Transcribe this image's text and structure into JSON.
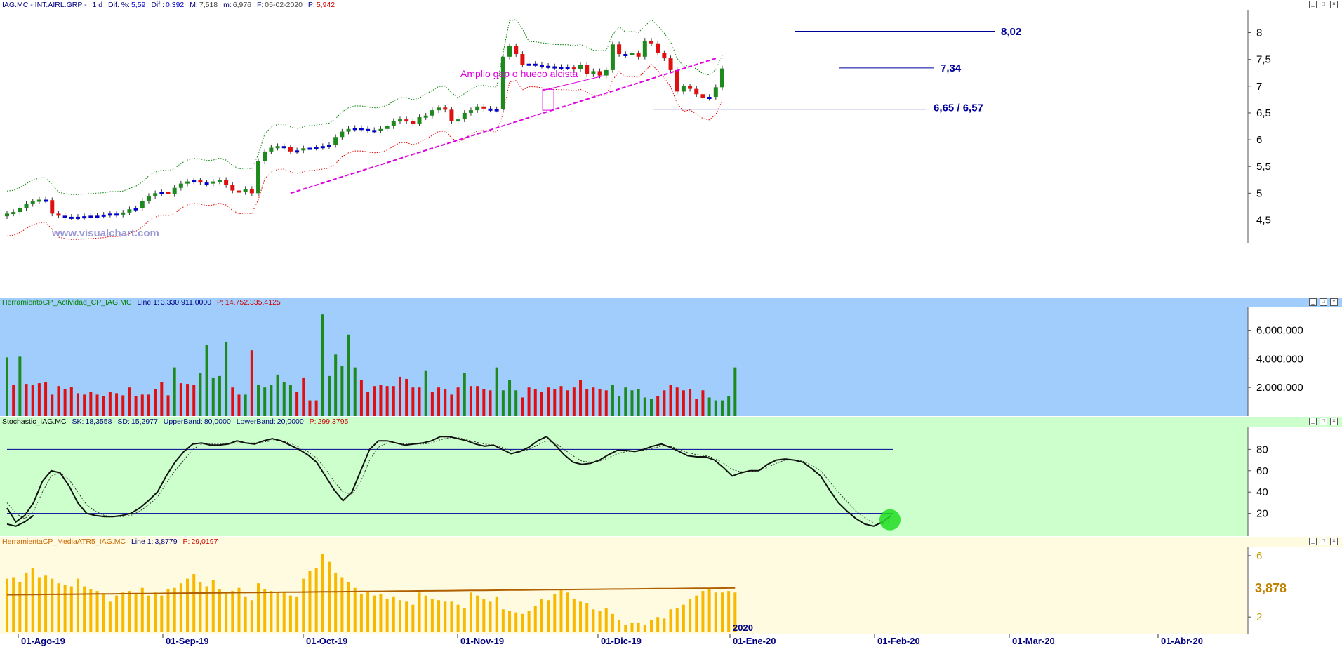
{
  "price_header": {
    "ticker": "IAG.MC - INT.AIRL.GRP -",
    "period": "1 d",
    "dif_pct_label": "Dif. %:",
    "dif_pct": "5,59",
    "dif_label": "Dif.:",
    "dif": "0,392",
    "m_label": "M:",
    "m": "7,518",
    "m2_label": "m:",
    "m2": "6,976",
    "f_label": "F:",
    "f": "05-02-2020",
    "p_label": "P:",
    "p": "5,942"
  },
  "volume_header": {
    "name": "HerramientoCP_Actividad_CP_IAG.MC",
    "line_label": "Line 1:",
    "line": "3.330.911,0000",
    "p_label": "P:",
    "p": "14.752.335,4125"
  },
  "stoch_header": {
    "name": "Stochastic_IAG.MC",
    "sk_label": "SK:",
    "sk": "18,3558",
    "sd_label": "SD:",
    "sd": "15,2977",
    "ub_label": "UpperBand:",
    "ub": "80,0000",
    "lb_label": "LowerBand:",
    "lb": "20,0000",
    "p_label": "P:",
    "p": "299,3795"
  },
  "atr_header": {
    "name": "HerramientaCP_MediaATR5_IAG.MC",
    "line_label": "Line 1:",
    "line": "3,8779",
    "p_label": "P:",
    "p": "29,0197"
  },
  "watermark": "www.visualchart.com",
  "window_buttons": [
    "_",
    "□",
    "×"
  ],
  "colors": {
    "up": "#1e8a1e",
    "down": "#e01010",
    "neutral": "#0000cc",
    "upper_band": "#008000",
    "lower_band": "#e00000",
    "trend": "#e000e0",
    "hline": "#000099",
    "vol_bg": "#a0cdfc",
    "stoch_bg": "#ccffcc",
    "atr_bg": "#fffbe0",
    "atr_bar": "#f8b800",
    "atr_avg": "#b06000"
  },
  "chart_data": [
    {
      "type": "candlestick",
      "x_labels": [
        "01-Ago-19",
        "01-Sep-19",
        "01-Oct-19",
        "01-Nov-19",
        "01-Dic-19",
        "01-Ene-20",
        "01-Feb-20",
        "01-Mar-20",
        "01-Abr-20"
      ],
      "year_label": "2020",
      "y_ticks": [
        "8",
        "7,5",
        "7",
        "6,5",
        "6",
        "5,5",
        "5",
        "4,5"
      ],
      "y_tick_values": [
        8,
        7.5,
        7,
        6.5,
        6,
        5.5,
        5,
        4.5
      ],
      "ylim": [
        4.1,
        8.4
      ],
      "closes": [
        4.62,
        4.65,
        4.72,
        4.8,
        4.85,
        4.88,
        4.87,
        4.62,
        4.58,
        4.56,
        4.55,
        4.56,
        4.57,
        4.58,
        4.58,
        4.6,
        4.62,
        4.6,
        4.64,
        4.7,
        4.72,
        4.86,
        4.95,
        5.0,
        5.02,
        4.98,
        5.1,
        5.18,
        5.22,
        5.24,
        5.2,
        5.18,
        5.22,
        5.25,
        5.15,
        5.05,
        5.02,
        5.08,
        5.0,
        5.6,
        5.78,
        5.85,
        5.88,
        5.86,
        5.78,
        5.8,
        5.84,
        5.85,
        5.86,
        5.88,
        5.9,
        6.05,
        6.15,
        6.2,
        6.22,
        6.2,
        6.18,
        6.17,
        6.2,
        6.25,
        6.35,
        6.38,
        6.35,
        6.3,
        6.42,
        6.45,
        6.55,
        6.6,
        6.56,
        6.35,
        6.38,
        6.5,
        6.55,
        6.62,
        6.58,
        6.56,
        6.57,
        7.55,
        7.75,
        7.6,
        7.4,
        7.42,
        7.4,
        7.38,
        7.37,
        7.35,
        7.36,
        7.35,
        7.32,
        7.4,
        7.22,
        7.28,
        7.2,
        7.3,
        7.78,
        7.6,
        7.58,
        7.62,
        7.55,
        7.85,
        7.8,
        7.62,
        7.52,
        7.3,
        6.9,
        7.0,
        6.95,
        6.85,
        6.78,
        6.8,
        6.98,
        7.33
      ],
      "annotations": {
        "gap_text": "Amplio gap o hueco alcista",
        "levels": [
          {
            "label": "8,02",
            "value": 8.02
          },
          {
            "label": "7,34",
            "value": 7.34
          },
          {
            "label": "6,65 / 6,57",
            "value": 6.57
          },
          {
            "label": "",
            "value": 6.65
          }
        ]
      }
    },
    {
      "type": "bar",
      "name": "HerramientoCP_Actividad_CP_IAG.MC",
      "y_ticks": [
        "6.000.000",
        "4.000.000",
        "2.000.000"
      ],
      "y_tick_values": [
        6000000,
        4000000,
        2000000
      ],
      "ylim": [
        0,
        7500000
      ],
      "values": [
        4100000,
        2200000,
        4150000,
        2250000,
        2200000,
        2300000,
        2400000,
        1500000,
        2100000,
        1900000,
        2050000,
        1600000,
        1500000,
        1700000,
        1500000,
        1400000,
        1700000,
        1600000,
        1450000,
        2000000,
        1400000,
        1500000,
        1500000,
        1900000,
        2400000,
        1450000,
        3400000,
        2300000,
        2250000,
        2200000,
        3000000,
        5000000,
        2700000,
        2800000,
        5200000,
        2000000,
        1500000,
        1500000,
        4600000,
        2200000,
        2000000,
        2200000,
        2900000,
        2400000,
        2200000,
        1700000,
        2700000,
        1100000,
        1100000,
        7100000,
        2800000,
        4300000,
        3500000,
        5700000,
        3400000,
        2500000,
        1700000,
        2100000,
        2200000,
        2100000,
        2100000,
        2750000,
        2600000,
        2000000,
        2000000,
        3200000,
        1700000,
        2000000,
        1900000,
        1500000,
        2000000,
        3000000,
        2100000,
        2100000,
        1900000,
        1800000,
        3400000,
        1800000,
        2500000,
        1800000,
        1300000,
        2000000,
        1900000,
        1700000,
        2000000,
        1900000,
        2100000,
        1800000,
        2000000,
        2500000,
        1900000,
        2000000,
        1900000,
        1800000,
        2200000,
        1400000,
        2000000,
        1800000,
        1900000,
        1300000,
        1200000,
        1400000,
        1800000,
        2200000,
        2000000,
        1800000,
        1900000,
        1200000,
        1800000,
        1300000,
        1100000,
        1100000,
        1400000,
        3400000
      ],
      "colors_up": [
        1,
        0,
        1,
        0,
        0,
        0,
        0,
        0,
        0,
        0,
        0,
        0,
        0,
        0,
        0,
        0,
        0,
        0,
        0,
        0,
        0,
        0,
        0,
        0,
        0,
        0,
        1,
        0,
        0,
        0,
        1,
        1,
        1,
        1,
        1,
        0,
        0,
        1,
        0,
        1,
        1,
        1,
        1,
        1,
        1,
        0,
        0,
        0,
        0,
        1,
        1,
        1,
        1,
        1,
        1,
        0,
        0,
        0,
        0,
        0,
        0,
        0,
        0,
        0,
        0,
        1,
        0,
        0,
        0,
        0,
        0,
        1,
        0,
        0,
        0,
        0,
        1,
        1,
        1,
        1,
        0,
        0,
        0,
        0,
        0,
        0,
        0,
        0,
        0,
        0,
        0,
        0,
        0,
        0,
        1,
        1,
        1,
        1,
        1,
        1,
        1,
        0,
        0,
        0,
        0,
        0,
        0,
        0,
        0,
        1,
        1,
        1,
        1,
        1
      ],
      "values_n": 113
    },
    {
      "type": "line",
      "name": "Stochastic_IAG.MC",
      "y_ticks": [
        "80",
        "60",
        "40",
        "20"
      ],
      "y_tick_values": [
        80,
        60,
        40,
        20
      ],
      "ylim": [
        0,
        100
      ],
      "bands": [
        80,
        20
      ],
      "series": [
        {
          "name": "SK",
          "values": [
            25,
            12,
            18,
            30,
            50,
            60,
            58,
            46,
            30,
            20,
            18,
            17,
            17,
            18,
            20,
            25,
            32,
            40,
            55,
            68,
            78,
            85,
            86,
            84,
            84,
            85,
            88,
            86,
            85,
            88,
            90,
            88,
            84,
            80,
            75,
            68,
            55,
            42,
            32,
            40,
            60,
            80,
            88,
            88,
            86,
            84,
            85,
            86,
            88,
            92,
            92,
            90,
            88,
            85,
            83,
            84,
            80,
            76,
            78,
            82,
            88,
            92,
            84,
            75,
            68,
            66,
            67,
            70,
            75,
            79,
            79,
            78,
            80,
            83,
            85,
            82,
            78,
            74,
            73,
            73,
            70,
            63,
            55,
            58,
            60,
            60,
            66,
            70,
            71,
            70,
            68,
            62,
            55,
            42,
            30,
            22,
            15,
            10,
            8,
            12,
            18
          ]
        },
        {
          "name": "SD",
          "values": [
            30,
            20,
            15,
            22,
            40,
            55,
            58,
            52,
            40,
            28,
            22,
            18,
            17,
            17,
            18,
            22,
            28,
            35,
            48,
            60,
            70,
            80,
            85,
            85,
            85,
            85,
            86,
            86,
            86,
            87,
            88,
            88,
            86,
            82,
            78,
            72,
            62,
            50,
            40,
            38,
            50,
            70,
            82,
            86,
            86,
            85,
            85,
            85,
            86,
            89,
            91,
            91,
            89,
            87,
            85,
            84,
            82,
            79,
            78,
            80,
            84,
            88,
            86,
            80,
            74,
            69,
            68,
            69,
            72,
            76,
            78,
            78,
            79,
            81,
            83,
            83,
            80,
            77,
            75,
            74,
            72,
            67,
            61,
            59,
            59,
            60,
            63,
            67,
            70,
            70,
            69,
            65,
            60,
            50,
            40,
            31,
            22,
            16,
            11,
            10,
            13
          ]
        }
      ]
    },
    {
      "type": "bar",
      "name": "HerramientaCP_MediaATR5_IAG.MC",
      "y_ticks": [
        "6",
        "2"
      ],
      "y_tick_values": [
        6,
        2
      ],
      "ylim": [
        1,
        6.5
      ],
      "last_value_label": "3,878",
      "values": [
        4.5,
        4.6,
        4.3,
        4.9,
        5.2,
        4.6,
        4.7,
        4.5,
        4.2,
        4.1,
        4.0,
        4.5,
        4.0,
        3.8,
        3.7,
        3.5,
        3.0,
        3.4,
        3.6,
        3.7,
        3.5,
        3.9,
        3.4,
        3.6,
        3.4,
        3.8,
        3.9,
        4.2,
        4.5,
        4.8,
        4.3,
        4.0,
        4.4,
        3.8,
        3.6,
        3.7,
        3.9,
        3.3,
        3.1,
        4.2,
        3.8,
        3.7,
        3.6,
        3.6,
        3.4,
        3.3,
        4.5,
        5.0,
        5.2,
        6.1,
        5.6,
        4.9,
        4.6,
        4.3,
        3.9,
        3.5,
        3.7,
        3.4,
        3.5,
        3.2,
        3.3,
        3.1,
        3.0,
        2.8,
        3.6,
        3.4,
        3.2,
        3.1,
        3.0,
        3.0,
        2.8,
        2.6,
        3.6,
        3.4,
        3.2,
        3.0,
        3.3,
        2.5,
        2.4,
        2.3,
        2.2,
        2.4,
        2.7,
        3.2,
        3.1,
        3.5,
        3.8,
        3.6,
        3.2,
        3.0,
        2.9,
        2.5,
        2.4,
        2.6,
        2.2,
        1.8,
        1.5,
        1.6,
        1.6,
        1.5,
        1.8,
        2.0,
        1.9,
        2.5,
        2.6,
        2.8,
        3.2,
        3.4,
        3.7,
        3.9,
        3.6,
        3.6,
        3.7,
        3.6
      ],
      "average": 3.878
    }
  ]
}
